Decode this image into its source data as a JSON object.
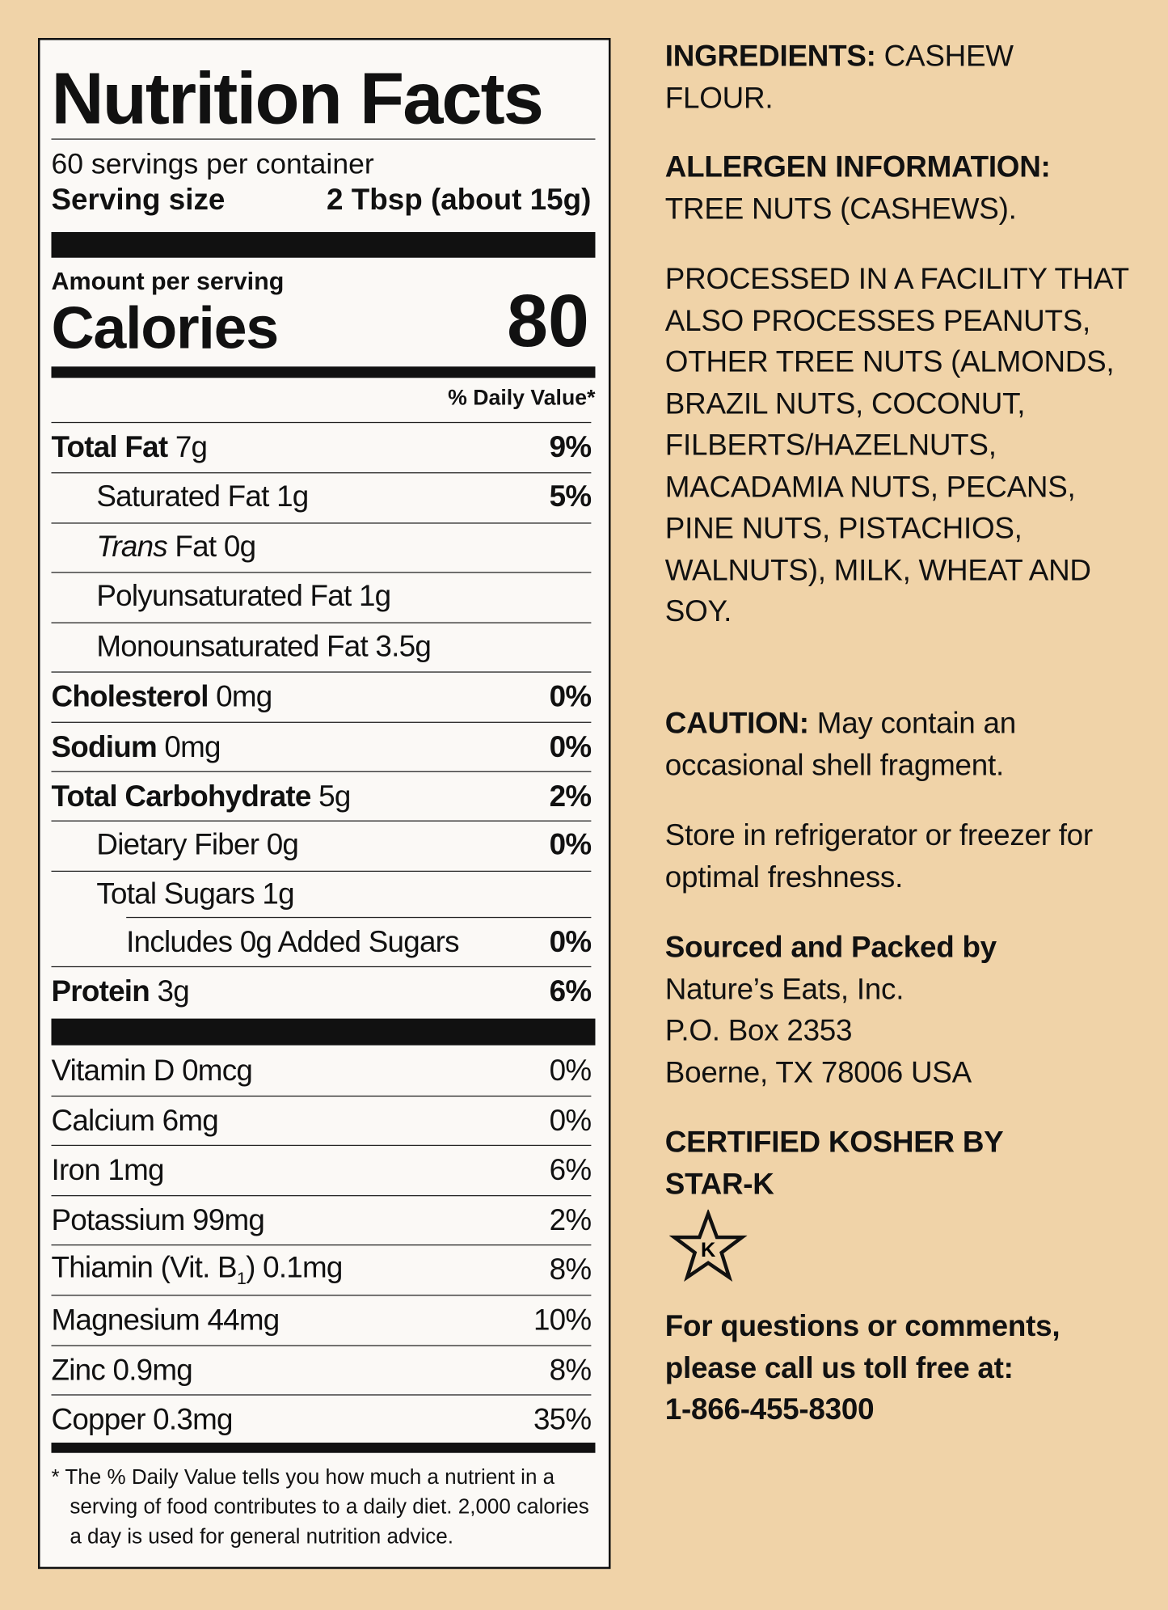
{
  "label": {
    "title": "Nutrition Facts",
    "servings": "60 servings per container",
    "serving_size_label": "Serving size",
    "serving_size_value": "2 Tbsp (about 15g)",
    "amount_per_serving": "Amount per serving",
    "calories_label": "Calories",
    "calories_value": "80",
    "daily_value_header": "% Daily Value*",
    "nutrients": [
      {
        "name": "Total Fat",
        "amount": "7g",
        "dv": "9%"
      },
      {
        "name": "Saturated Fat",
        "amount": "1g",
        "dv": "5%"
      },
      {
        "name_italic": "Trans",
        "name": "Fat",
        "amount": "0g"
      },
      {
        "name": "Polyunsaturated Fat",
        "amount": "1g"
      },
      {
        "name": "Monounsaturated Fat",
        "amount": "3.5g"
      },
      {
        "name": "Cholesterol",
        "amount": "0mg",
        "dv": "0%"
      },
      {
        "name": "Sodium",
        "amount": "0mg",
        "dv": "0%"
      },
      {
        "name": "Total Carbohydrate",
        "amount": "5g",
        "dv": "2%"
      },
      {
        "name": "Dietary Fiber",
        "amount": "0g",
        "dv": "0%"
      },
      {
        "name": "Total Sugars",
        "amount": "1g"
      },
      {
        "name": "Includes 0g Added Sugars",
        "dv": "0%"
      },
      {
        "name": "Protein",
        "amount": "3g",
        "dv": "6%"
      }
    ],
    "micronutrients": [
      {
        "name": "Vitamin D",
        "amount": "0mcg",
        "dv": "0%"
      },
      {
        "name": "Calcium",
        "amount": "6mg",
        "dv": "0%"
      },
      {
        "name": "Iron",
        "amount": "1mg",
        "dv": "6%"
      },
      {
        "name": "Potassium",
        "amount": "99mg",
        "dv": "2%"
      },
      {
        "name": "Thiamin (Vit. B",
        "subscript": "1",
        "name_end": ")",
        "amount": "0.1mg",
        "dv": "8%"
      },
      {
        "name": "Magnesium",
        "amount": "44mg",
        "dv": "10%"
      },
      {
        "name": "Zinc",
        "amount": "0.9mg",
        "dv": "8%"
      },
      {
        "name": "Copper",
        "amount": "0.3mg",
        "dv": "35%"
      }
    ],
    "footnote": "* The % Daily Value tells you how much a nutrient in a serving of food contributes to a daily diet. 2,000 calories a day is used for general nutrition advice."
  },
  "info": {
    "ingredients": {
      "label": "INGREDIENTS:",
      "text": "CASHEW FLOUR."
    },
    "allergen": {
      "label": "ALLERGEN INFORMATION:",
      "text": "TREE NUTS (CASHEWS)."
    },
    "facility": "PROCESSED IN A FACILITY THAT ALSO PROCESSES PEANUTS, OTHER TREE NUTS (ALMONDS, BRAZIL NUTS, COCONUT, FILBERTS/HAZELNUTS, MACADAMIA NUTS, PECANS, PINE NUTS, PISTACHIOS, WALNUTS), MILK, WHEAT AND SOY.",
    "caution": {
      "label": "CAUTION:",
      "text": "May contain an occasional shell fragment."
    },
    "storage": "Store in refrigerator or freezer for optimal freshness.",
    "packer": {
      "label": "Sourced and Packed by",
      "company": "Nature’s Eats, Inc.",
      "address": "P.O. Box 2353",
      "city": "Boerne, TX 78006 USA"
    },
    "kosher": "CERTIFIED KOSHER BY STAR-K",
    "kosher_symbol": "K",
    "contact": "For questions or comments, please call us toll free at:",
    "phone": "1-866-455-8300"
  }
}
